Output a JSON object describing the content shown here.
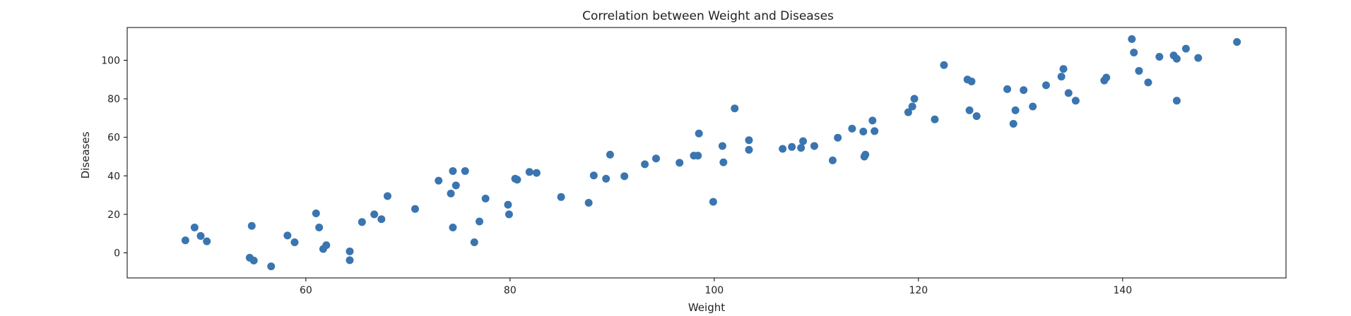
{
  "chart_data": {
    "type": "scatter",
    "title": "Correlation between Weight and Diseases",
    "xlabel": "Weight",
    "ylabel": "Diseases",
    "xlim": [
      42.5,
      156
    ],
    "ylim": [
      -13,
      117
    ],
    "xticks": [
      60,
      80,
      100,
      120,
      140
    ],
    "yticks": [
      0,
      20,
      40,
      60,
      80,
      100
    ],
    "grid": false,
    "legend": "none",
    "marker_color": "#3a75b0",
    "points": [
      [
        48.2,
        6.5
      ],
      [
        49.1,
        13.2
      ],
      [
        49.7,
        8.8
      ],
      [
        50.3,
        6.0
      ],
      [
        54.5,
        -2.5
      ],
      [
        54.7,
        14.0
      ],
      [
        54.9,
        -4.0
      ],
      [
        56.6,
        -7.0
      ],
      [
        58.2,
        9.0
      ],
      [
        58.9,
        5.5
      ],
      [
        61.0,
        20.5
      ],
      [
        61.3,
        13.2
      ],
      [
        61.7,
        2.0
      ],
      [
        62.0,
        4.0
      ],
      [
        64.3,
        0.8
      ],
      [
        64.3,
        -3.8
      ],
      [
        65.5,
        16.0
      ],
      [
        66.7,
        20.0
      ],
      [
        67.4,
        17.5
      ],
      [
        68.0,
        29.5
      ],
      [
        70.7,
        22.8
      ],
      [
        73.0,
        37.5
      ],
      [
        74.2,
        30.8
      ],
      [
        74.4,
        42.5
      ],
      [
        74.4,
        13.2
      ],
      [
        74.7,
        35.0
      ],
      [
        75.6,
        42.5
      ],
      [
        76.5,
        5.5
      ],
      [
        77.0,
        16.3
      ],
      [
        77.6,
        28.2
      ],
      [
        79.8,
        25.0
      ],
      [
        79.9,
        20.0
      ],
      [
        80.5,
        38.5
      ],
      [
        80.7,
        38.0
      ],
      [
        81.9,
        42.0
      ],
      [
        82.6,
        41.5
      ],
      [
        85.0,
        29.0
      ],
      [
        87.7,
        26.0
      ],
      [
        88.2,
        40.2
      ],
      [
        89.4,
        38.5
      ],
      [
        89.8,
        51.0
      ],
      [
        91.2,
        39.8
      ],
      [
        93.2,
        46.0
      ],
      [
        94.3,
        49.0
      ],
      [
        96.6,
        46.8
      ],
      [
        98.0,
        50.5
      ],
      [
        98.4,
        50.5
      ],
      [
        98.5,
        62.0
      ],
      [
        99.9,
        26.5
      ],
      [
        100.8,
        55.5
      ],
      [
        100.9,
        47.0
      ],
      [
        102.0,
        75.0
      ],
      [
        103.4,
        58.5
      ],
      [
        103.4,
        53.5
      ],
      [
        106.7,
        54.0
      ],
      [
        107.6,
        55.0
      ],
      [
        108.5,
        54.5
      ],
      [
        108.7,
        58.0
      ],
      [
        109.8,
        55.5
      ],
      [
        111.6,
        48.0
      ],
      [
        112.1,
        59.8
      ],
      [
        113.5,
        64.5
      ],
      [
        114.6,
        63.0
      ],
      [
        114.7,
        50.0
      ],
      [
        114.8,
        51.0
      ],
      [
        115.5,
        68.7
      ],
      [
        115.7,
        63.2
      ],
      [
        119.0,
        73.0
      ],
      [
        119.4,
        76.0
      ],
      [
        119.6,
        80.0
      ],
      [
        121.6,
        69.3
      ],
      [
        122.5,
        97.5
      ],
      [
        124.8,
        90.0
      ],
      [
        125.0,
        74.0
      ],
      [
        125.2,
        89.0
      ],
      [
        125.7,
        71.0
      ],
      [
        128.7,
        85.0
      ],
      [
        129.3,
        67.0
      ],
      [
        129.5,
        74.0
      ],
      [
        130.3,
        84.5
      ],
      [
        131.2,
        76.0
      ],
      [
        132.5,
        87.0
      ],
      [
        134.0,
        91.5
      ],
      [
        134.2,
        95.5
      ],
      [
        134.7,
        83.0
      ],
      [
        135.4,
        79.0
      ],
      [
        138.2,
        89.5
      ],
      [
        138.4,
        91.0
      ],
      [
        140.9,
        111.0
      ],
      [
        141.1,
        104.0
      ],
      [
        141.6,
        94.5
      ],
      [
        142.5,
        88.5
      ],
      [
        143.6,
        101.8
      ],
      [
        145.0,
        102.5
      ],
      [
        145.3,
        100.8
      ],
      [
        145.3,
        79.0
      ],
      [
        146.2,
        106.0
      ],
      [
        147.4,
        101.2
      ],
      [
        151.2,
        109.5
      ]
    ]
  }
}
